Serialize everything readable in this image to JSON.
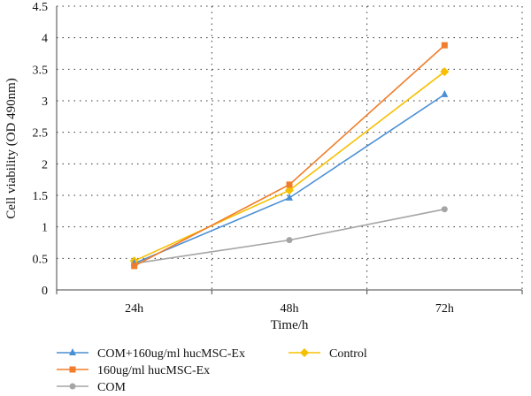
{
  "chart_data": {
    "type": "line",
    "title": "",
    "xlabel": "Time/h",
    "ylabel": "Cell viability (OD 490nm)",
    "categories": [
      "24h",
      "48h",
      "72h"
    ],
    "ylim": [
      0,
      4.5
    ],
    "yticks": [
      "0",
      "0.5",
      "1",
      "1.5",
      "2",
      "2.5",
      "3",
      "3.5",
      "4",
      "4.5"
    ],
    "grid": "vertical and horizontal dotted",
    "legend_position": "bottom",
    "series": [
      {
        "name": "COM+160ug/ml hucMSC-Ex",
        "values": [
          0.42,
          1.46,
          3.1
        ],
        "color": "#4a8fd4",
        "marker": "triangle"
      },
      {
        "name": "160ug/ml hucMSC-Ex",
        "values": [
          0.38,
          1.67,
          3.88
        ],
        "color": "#f07d2b",
        "marker": "square"
      },
      {
        "name": "COM",
        "values": [
          0.42,
          0.79,
          1.28
        ],
        "color": "#a5a5a5",
        "marker": "circle"
      },
      {
        "name": "Control",
        "values": [
          0.46,
          1.58,
          3.46
        ],
        "color": "#f5c000",
        "marker": "diamond"
      }
    ]
  }
}
